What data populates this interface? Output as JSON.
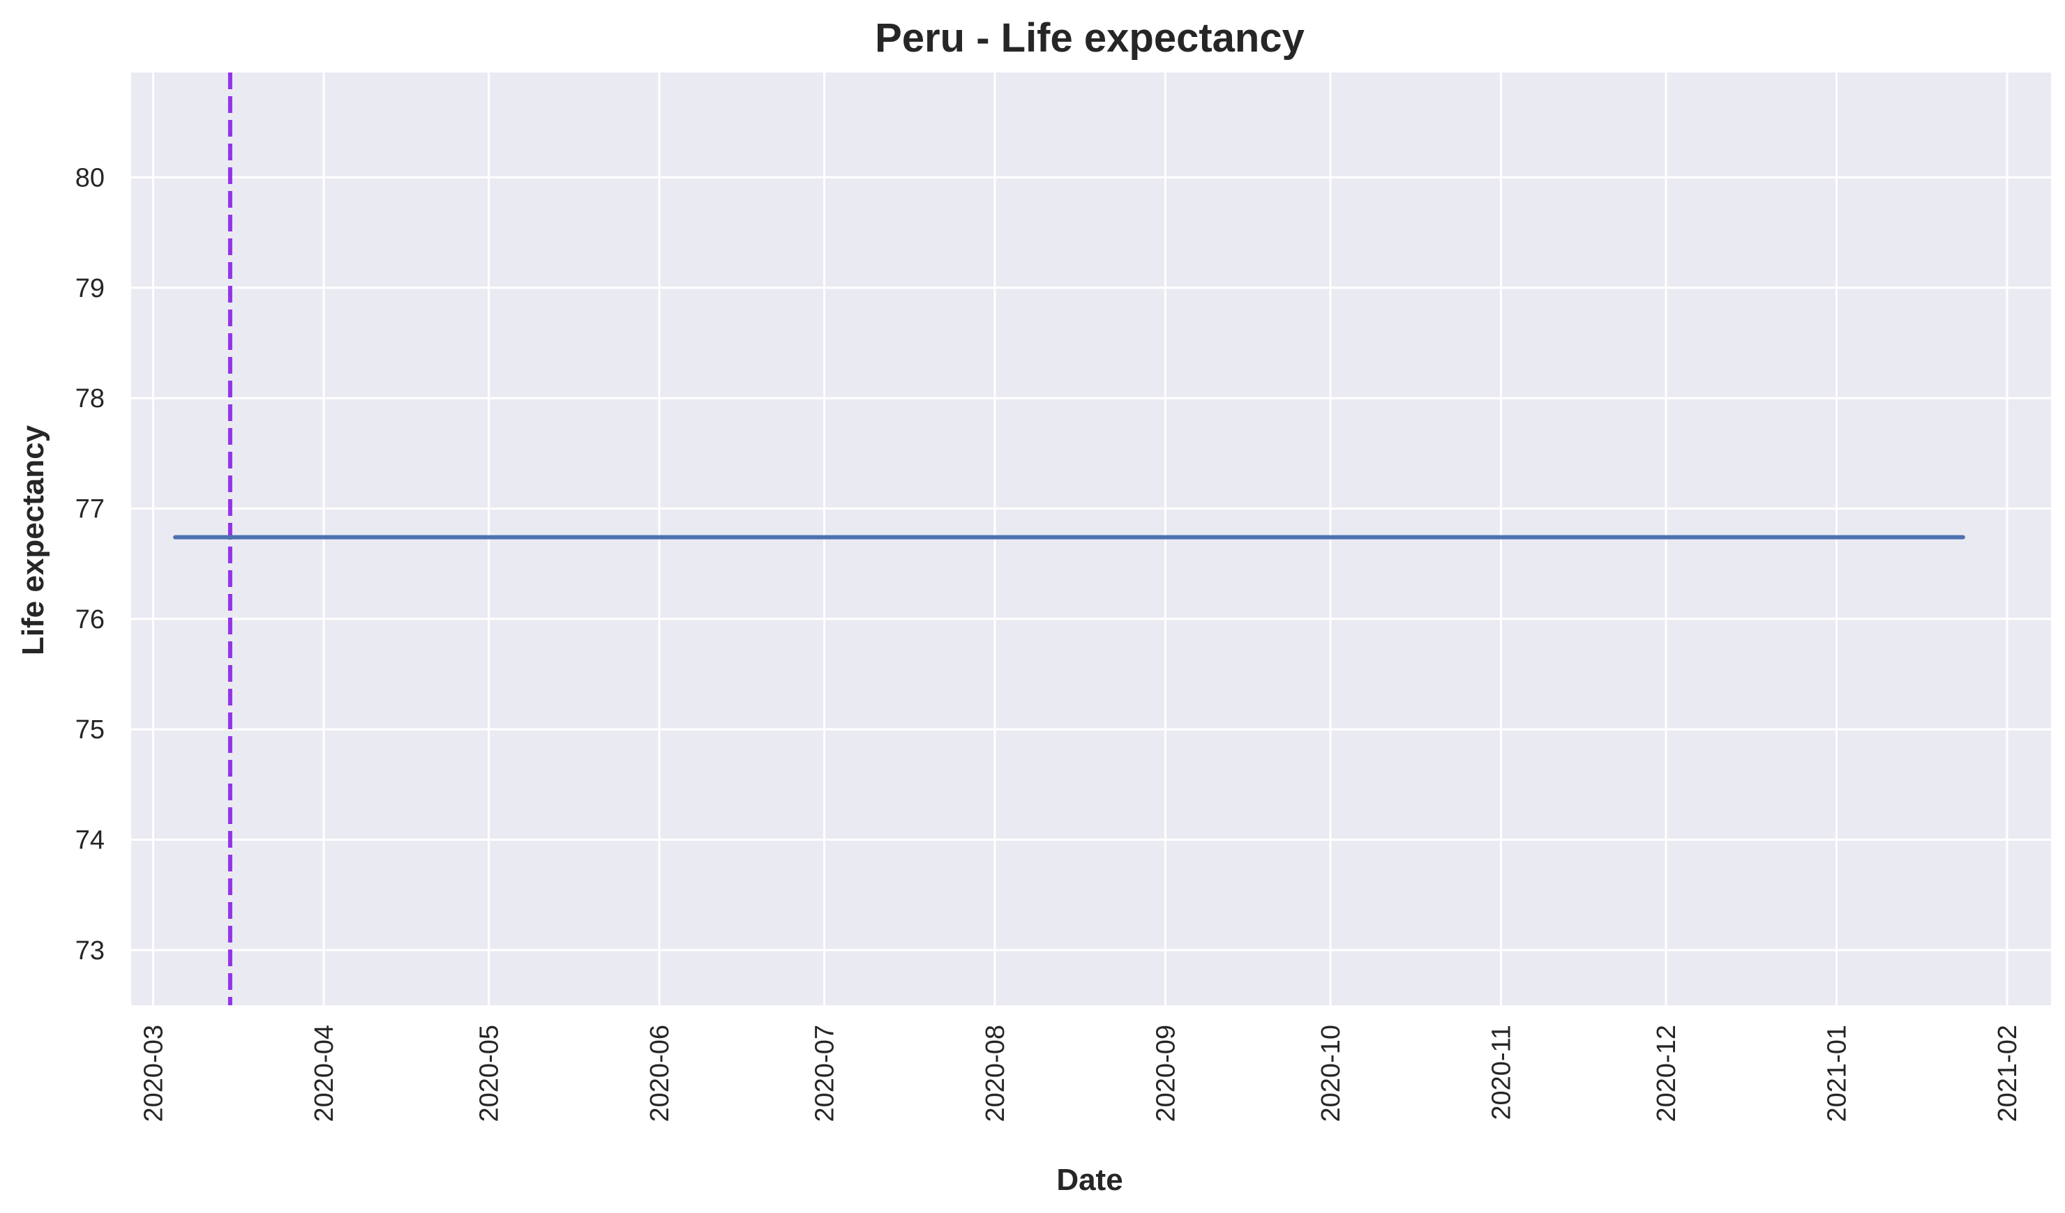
{
  "chart_data": {
    "type": "line",
    "title": "Peru - Life expectancy",
    "xlabel": "Date",
    "ylabel": "Life expectancy",
    "x_axis_kind": "date",
    "xlim": [
      "2020-02-26",
      "2021-02-09"
    ],
    "ylim": [
      72.5,
      80.95
    ],
    "x_ticks": [
      "2020-03",
      "2020-04",
      "2020-05",
      "2020-06",
      "2020-07",
      "2020-08",
      "2020-09",
      "2020-10",
      "2020-11",
      "2020-12",
      "2021-01",
      "2021-02"
    ],
    "y_ticks": [
      73,
      74,
      75,
      76,
      77,
      78,
      79,
      80
    ],
    "grid": true,
    "background_color": "#eaeaf2",
    "grid_color": "#ffffff",
    "series": [
      {
        "color": "#4c72b0",
        "x": [
          "2020-03-05",
          "2021-01-24"
        ],
        "y": [
          76.74,
          76.74
        ]
      }
    ],
    "vlines": [
      {
        "x": "2020-03-15",
        "color": "#9334e6",
        "style": "dashed"
      }
    ]
  }
}
